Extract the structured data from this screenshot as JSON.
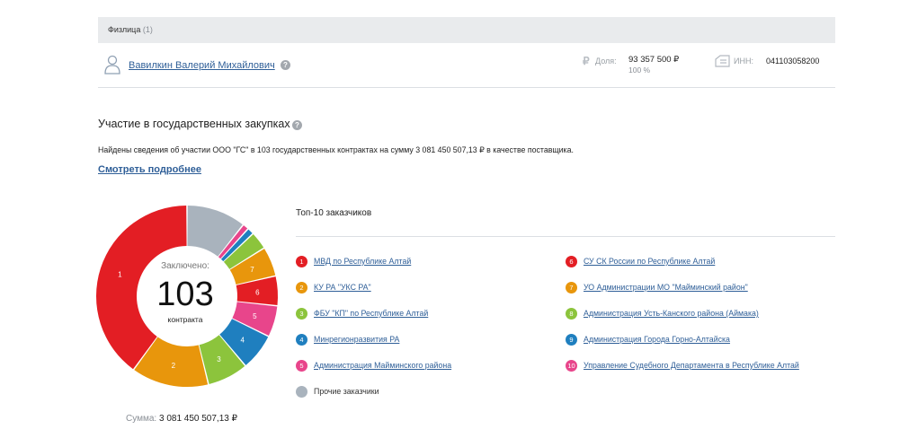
{
  "header": {
    "title": "Физлица",
    "count": "(1)"
  },
  "person": {
    "name": "Вавилкин Валерий Михайлович",
    "share_label": "Доля:",
    "share_value": "93 357 500 ₽",
    "share_pct": "100 %",
    "inn_label": "ИНН:",
    "inn_value": "041103058200"
  },
  "procurement": {
    "title": "Участие в государственных закупках",
    "text": "Найдены сведения об участии ООО \"ГС\" в 103 государственных контрактах на сумму 3 081 450 507,13 ₽ в качестве поставщика.",
    "more_link": "Смотреть подробнее"
  },
  "donut": {
    "center_top": "Заключено:",
    "center_number": "103",
    "center_bottom": "контракта",
    "sum_label": "Сумма:",
    "sum_value": "3 081 450 507,13 ₽"
  },
  "top10": {
    "title": "Топ-10 заказчиков",
    "items": [
      {
        "n": "1",
        "label": "МВД по Республике Алтай",
        "color": "#e31e24"
      },
      {
        "n": "2",
        "label": "КУ РА \"УКС РА\"",
        "color": "#e8960c"
      },
      {
        "n": "3",
        "label": "ФБУ \"КП\" по Республике Алтай",
        "color": "#8cc43c"
      },
      {
        "n": "4",
        "label": "Минрегионразвития РА",
        "color": "#1f7fbf"
      },
      {
        "n": "5",
        "label": "Администрация Майминского района",
        "color": "#e8458b"
      },
      {
        "n": "6",
        "label": "СУ СК России по Республике Алтай",
        "color": "#e31e24"
      },
      {
        "n": "7",
        "label": "УО Администрации МО \"Майминский район\"",
        "color": "#e8960c"
      },
      {
        "n": "8",
        "label": "Администрация Усть-Канского района (Аймака)",
        "color": "#8cc43c"
      },
      {
        "n": "9",
        "label": "Администрация Города Горно-Алтайска",
        "color": "#1f7fbf"
      },
      {
        "n": "10",
        "label": "Управление Судебного Департамента в Республике Алтай",
        "color": "#e8458b"
      },
      {
        "n": "",
        "label": "Прочие заказчики",
        "color": "#a9b3bd"
      }
    ]
  },
  "chart_data": {
    "type": "pie",
    "categories": [
      "1",
      "2",
      "3",
      "4",
      "5",
      "6",
      "7",
      "8",
      "9",
      "10",
      "Прочие"
    ],
    "values": [
      40,
      13.8,
      7.3,
      6.6,
      5.6,
      5.3,
      5.3,
      3.2,
      1.2,
      1.1,
      10.6
    ],
    "colors": [
      "#e31e24",
      "#e8960c",
      "#8cc43c",
      "#1f7fbf",
      "#e8458b",
      "#e31e24",
      "#e8960c",
      "#8cc43c",
      "#1f7fbf",
      "#e8458b",
      "#a9b3bd"
    ],
    "segment_labels": [
      "1",
      "2",
      "3",
      "4",
      "5",
      "6",
      "7",
      "",
      "",
      "",
      ""
    ]
  }
}
